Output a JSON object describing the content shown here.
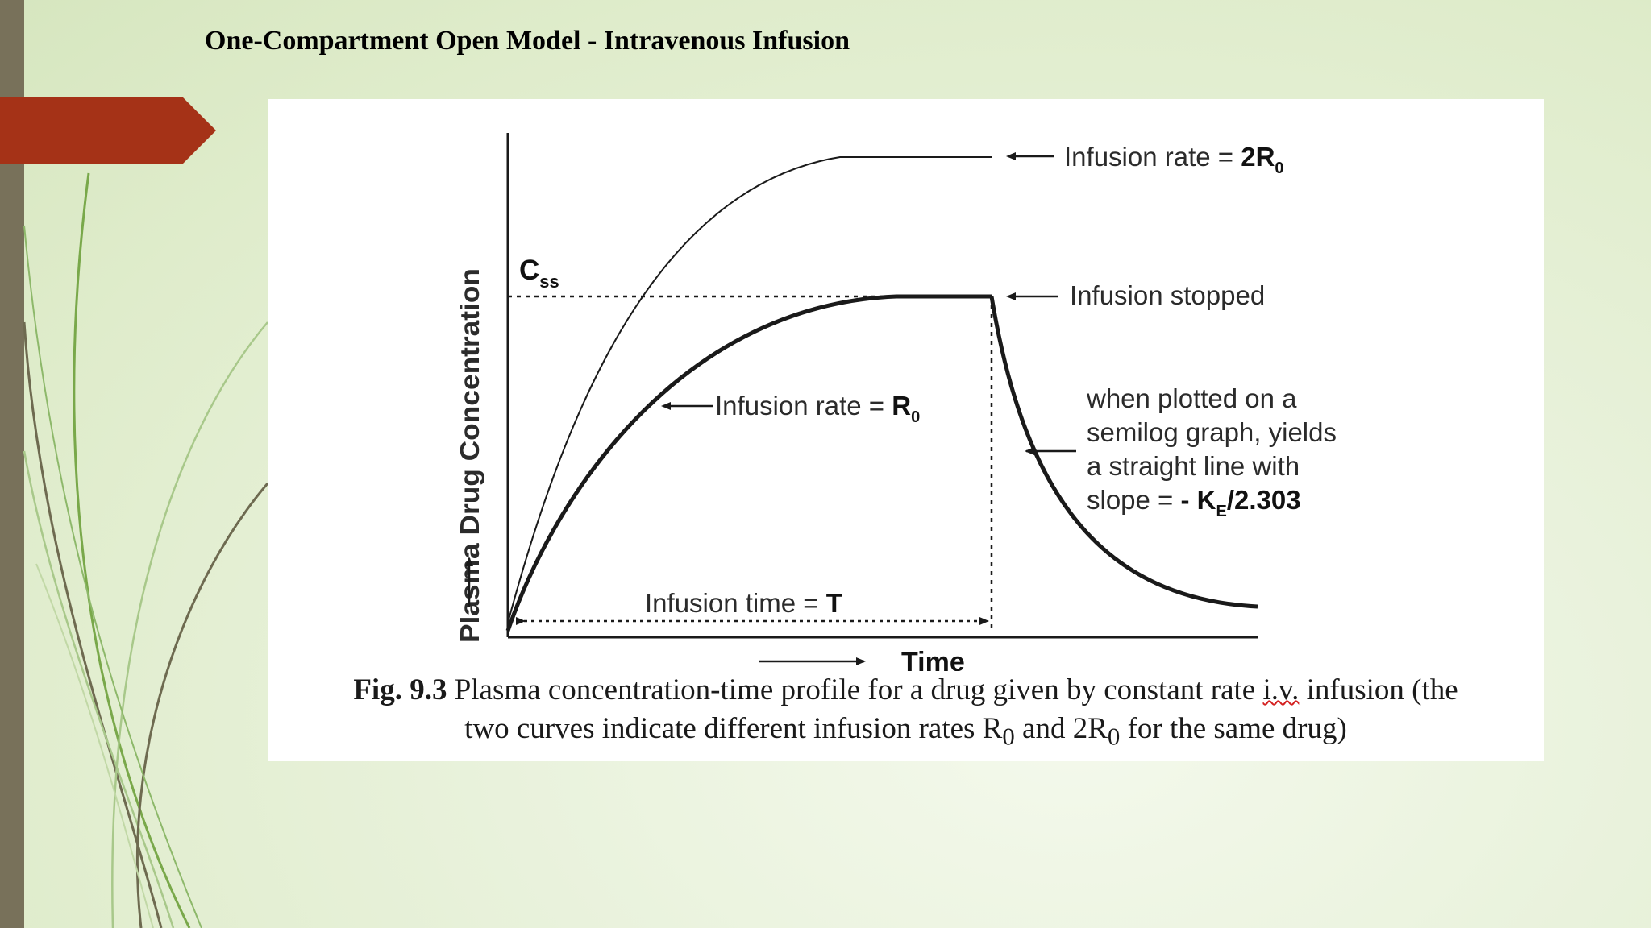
{
  "slide": {
    "title": "One-Compartment Open Model - Intravenous Infusion",
    "colors": {
      "accent": "#a53217",
      "side_bar": "#78715a",
      "background": "#e5efd6"
    }
  },
  "figure": {
    "y_axis_label": "Plasma Drug Concentration",
    "x_axis_label": "Time",
    "css_label": {
      "main": "C",
      "sub": "ss"
    },
    "labels": {
      "rate_2r0": {
        "text": "Infusion rate = ",
        "bold": "2R",
        "sub": "0"
      },
      "stopped": "Infusion stopped",
      "rate_r0": {
        "text": "Infusion rate = ",
        "bold": "R",
        "sub": "0"
      },
      "semilog": {
        "line1": "when plotted on a",
        "line2": "semilog graph, yields",
        "line3": "a straight line with",
        "line4_text": "slope = ",
        "line4_bold_a": "- K",
        "line4_sub": "E",
        "line4_bold_b": "/2.303"
      },
      "infusion_time": {
        "text": "Infusion time = ",
        "bold": "T"
      }
    },
    "caption": {
      "fig_num": "Fig. 9.3",
      "part1": " Plasma concentration-time profile for a drug given by constant rate ",
      "abbr": "i.v.",
      "part2": " infusion (the",
      "part3": "two curves indicate different infusion rates R",
      "sub1": "0",
      "part4": " and 2R",
      "sub2": "0",
      "part5": " for the same drug)"
    }
  }
}
